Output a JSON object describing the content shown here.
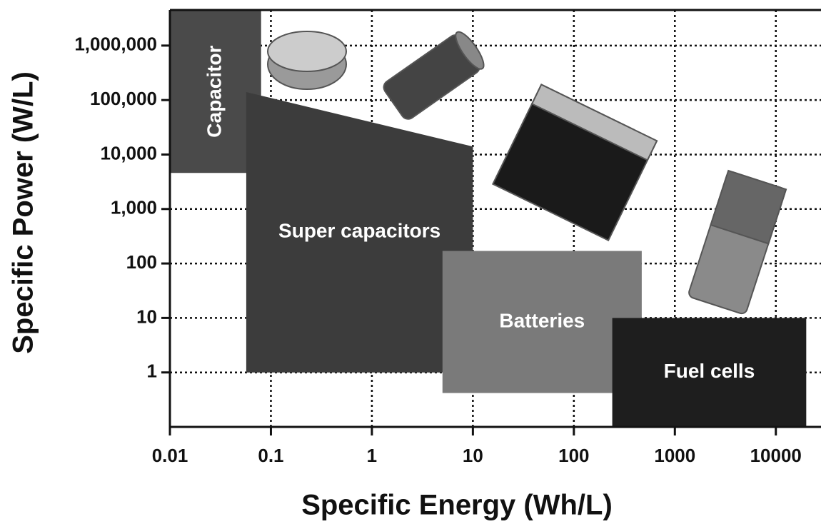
{
  "chart_data": {
    "type": "region",
    "x_label": "Specific Energy (Wh/L)",
    "y_label": "Specific Power (W/L)",
    "xscale": "log",
    "yscale": "log",
    "xlim": [
      0.01,
      28000
    ],
    "ylim": [
      0.1,
      4500000
    ],
    "xticks": [
      0.01,
      0.1,
      1,
      10,
      100,
      1000,
      10000
    ],
    "yticks": [
      1,
      10,
      100,
      {
        "value": 1000,
        "label": "1,000"
      },
      {
        "value": 10000,
        "label": "10,000"
      },
      {
        "value": 100000,
        "label": "100,000"
      },
      {
        "value": 1000000,
        "label": "1,000,000"
      }
    ],
    "grid": true,
    "series": [
      {
        "name": "Capacitor",
        "color": "#4a4a4a",
        "x": [
          0.01,
          0.08,
          0.08,
          0.01
        ],
        "y": [
          4500000,
          4500000,
          4600,
          4600
        ]
      },
      {
        "name": "Super capacitors",
        "color": "#3c3c3c",
        "x": [
          0.057,
          10,
          10,
          0.057
        ],
        "y": [
          140000,
          14000,
          1,
          1
        ]
      },
      {
        "name": "Batteries",
        "color": "#7a7a7a",
        "x": [
          5,
          470,
          470,
          5
        ],
        "y": [
          170,
          170,
          0.42,
          0.42
        ]
      },
      {
        "name": "Fuel cells",
        "color": "#1e1e1e",
        "x": [
          240,
          20000,
          20000,
          240
        ],
        "y": [
          10,
          10,
          0.1,
          0.1
        ]
      }
    ]
  }
}
